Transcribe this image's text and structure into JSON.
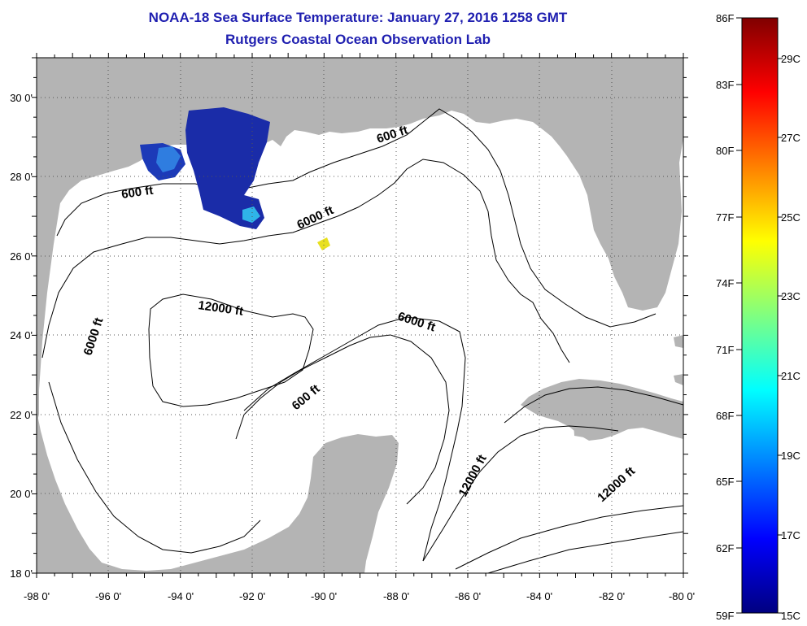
{
  "title": "NOAA-18 Sea Surface Temperature:  January 27, 2016 1258 GMT",
  "subtitle": "Rutgers Coastal Ocean Observation Lab",
  "map": {
    "lon_range": [
      -98,
      -80
    ],
    "lat_range": [
      18,
      31
    ],
    "lon_ticks": [
      "-98 0'",
      "-96 0'",
      "-94 0'",
      "-92 0'",
      "-90 0'",
      "-88 0'",
      "-86 0'",
      "-84 0'",
      "-82 0'",
      "-80 0'"
    ],
    "lat_ticks": [
      "18 0'",
      "20 0'",
      "22 0'",
      "24 0'",
      "26 0'",
      "28 0'",
      "30 0'"
    ],
    "land_color": "#b4b4b4",
    "water_color": "#ffffff",
    "grid": "dotted",
    "contour_labels": [
      "600 ft",
      "600 ft",
      "6000 ft",
      "6000 ft",
      "12000 ft",
      "6000 ft",
      "600 ft",
      "12000 ft",
      "12000 ft"
    ]
  },
  "colorbar": {
    "fahrenheit_labels": [
      "86F",
      "83F",
      "80F",
      "77F",
      "74F",
      "71F",
      "68F",
      "65F",
      "62F",
      "59F"
    ],
    "celsius_labels": [
      "29C",
      "27C",
      "25C",
      "23C",
      "21C",
      "19C",
      "17C",
      "15C"
    ],
    "colors": [
      "#800000",
      "#ff0000",
      "#ff8000",
      "#ffff00",
      "#80ff80",
      "#00ffff",
      "#0080ff",
      "#0000ff",
      "#000080"
    ]
  }
}
